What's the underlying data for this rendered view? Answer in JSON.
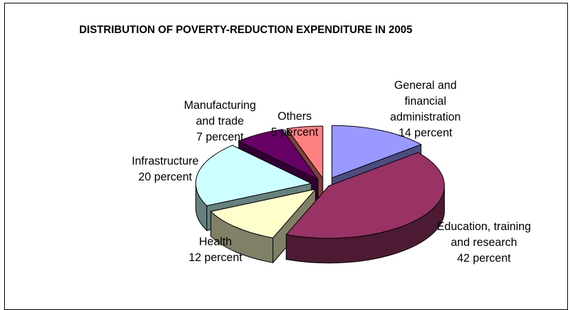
{
  "chart_data": {
    "type": "pie",
    "title": "DISTRIBUTION OF POVERTY-REDUCTION EXPENDITURE IN 2005",
    "slices": [
      {
        "id": "general",
        "label_lines": [
          "General and",
          "financial",
          "administration",
          "14 percent"
        ],
        "value": 14,
        "color": "#9999ff"
      },
      {
        "id": "education",
        "label_lines": [
          "Education, training",
          "and research",
          "42 percent"
        ],
        "value": 42,
        "color": "#993366"
      },
      {
        "id": "health",
        "label_lines": [
          "Health",
          "12 percent"
        ],
        "value": 12,
        "color": "#ffffcc"
      },
      {
        "id": "infrastructure",
        "label_lines": [
          "Infrastructure",
          "20 percent"
        ],
        "value": 20,
        "color": "#ccffff"
      },
      {
        "id": "manufacturing",
        "label_lines": [
          "Manufacturing",
          "and trade",
          "7 percent"
        ],
        "value": 7,
        "color": "#660066"
      },
      {
        "id": "others",
        "label_lines": [
          "Others",
          "5 percent"
        ],
        "value": 5,
        "color": "#ff8080"
      }
    ]
  }
}
